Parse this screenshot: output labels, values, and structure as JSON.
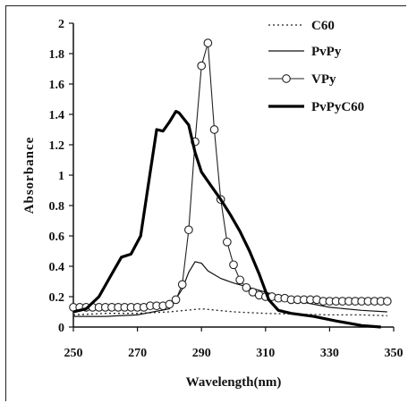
{
  "chart_data": {
    "type": "line",
    "xlabel": "Wavelength(nm)",
    "ylabel": "Absorbance",
    "xlim": [
      250,
      350
    ],
    "ylim": [
      0,
      2
    ],
    "x_ticks": [
      250,
      270,
      290,
      310,
      330,
      350
    ],
    "y_ticks": [
      0,
      0.2,
      0.4,
      0.6,
      0.8,
      1,
      1.2,
      1.4,
      1.6,
      1.8,
      2
    ],
    "legend_position": "top-right",
    "series": [
      {
        "name": "C60",
        "style": "dotted",
        "x": [
          250,
          260,
          270,
          280,
          285,
          290,
          295,
          300,
          310,
          320,
          330,
          340,
          348
        ],
        "y": [
          0.08,
          0.09,
          0.09,
          0.1,
          0.11,
          0.12,
          0.11,
          0.1,
          0.09,
          0.085,
          0.08,
          0.08,
          0.075
        ]
      },
      {
        "name": "PvPy",
        "style": "thin",
        "x": [
          250,
          260,
          270,
          280,
          284,
          286,
          288,
          290,
          292,
          296,
          300,
          310,
          320,
          330,
          340,
          348
        ],
        "y": [
          0.07,
          0.07,
          0.08,
          0.12,
          0.25,
          0.36,
          0.43,
          0.42,
          0.37,
          0.32,
          0.29,
          0.23,
          0.17,
          0.13,
          0.11,
          0.1
        ]
      },
      {
        "name": "VPy",
        "style": "circles",
        "x": [
          250,
          252,
          254,
          256,
          258,
          260,
          262,
          264,
          266,
          268,
          270,
          272,
          274,
          276,
          278,
          280,
          282,
          284,
          286,
          288,
          290,
          292,
          294,
          296,
          298,
          300,
          302,
          304,
          306,
          308,
          310,
          312,
          314,
          316,
          318,
          320,
          322,
          324,
          326,
          328,
          330,
          332,
          334,
          336,
          338,
          340,
          342,
          344,
          346,
          348
        ],
        "y": [
          0.13,
          0.13,
          0.13,
          0.13,
          0.13,
          0.13,
          0.13,
          0.13,
          0.13,
          0.13,
          0.13,
          0.13,
          0.14,
          0.14,
          0.14,
          0.15,
          0.18,
          0.28,
          0.64,
          1.22,
          1.72,
          1.87,
          1.3,
          0.84,
          0.56,
          0.41,
          0.31,
          0.26,
          0.23,
          0.21,
          0.2,
          0.2,
          0.19,
          0.19,
          0.18,
          0.18,
          0.18,
          0.18,
          0.18,
          0.17,
          0.17,
          0.17,
          0.17,
          0.17,
          0.17,
          0.17,
          0.17,
          0.17,
          0.17,
          0.17
        ]
      },
      {
        "name": "PvPyC60",
        "style": "thick",
        "x": [
          250,
          254,
          258,
          262,
          265,
          268,
          271,
          274,
          276,
          278,
          280,
          282,
          283,
          286,
          288,
          290,
          293,
          296,
          299,
          302,
          305,
          308,
          311,
          314,
          318,
          325,
          332,
          340,
          346
        ],
        "y": [
          0.1,
          0.12,
          0.2,
          0.35,
          0.46,
          0.48,
          0.6,
          1.02,
          1.3,
          1.29,
          1.35,
          1.42,
          1.41,
          1.33,
          1.15,
          1.02,
          0.93,
          0.84,
          0.74,
          0.63,
          0.5,
          0.35,
          0.18,
          0.11,
          0.09,
          0.07,
          0.04,
          0.01,
          0.0
        ]
      }
    ]
  }
}
